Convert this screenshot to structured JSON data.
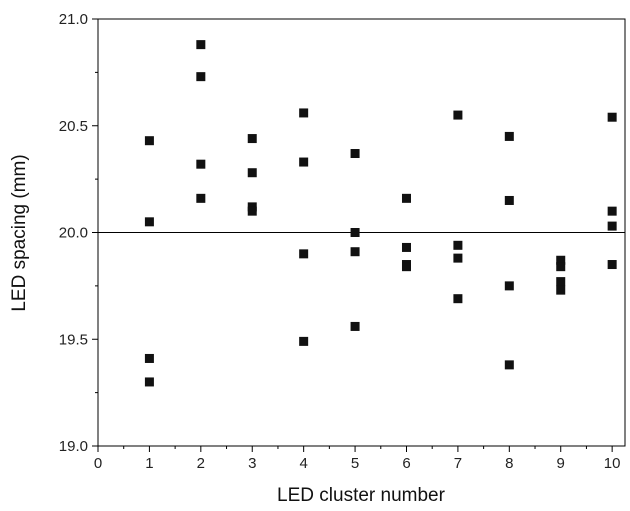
{
  "chart_data": {
    "type": "scatter",
    "title": "",
    "xlabel": "LED cluster number",
    "ylabel": "LED spacing (mm)",
    "xlim": [
      0,
      10.25
    ],
    "ylim": [
      19.0,
      21.0
    ],
    "x_major_ticks": [
      0,
      1,
      2,
      3,
      4,
      5,
      6,
      7,
      8,
      9,
      10
    ],
    "x_tick_labels": [
      "0",
      "1",
      "2",
      "3",
      "4",
      "5",
      "6",
      "7",
      "8",
      "9",
      "10"
    ],
    "y_major_ticks": [
      19.0,
      19.5,
      20.0,
      20.5,
      21.0
    ],
    "y_tick_labels": [
      "19.0",
      "19.5",
      "20.0",
      "20.5",
      "21.0"
    ],
    "reference_line_y": 20.0,
    "marker": "square",
    "marker_color": "#111111",
    "grid": false,
    "series": [
      {
        "points": [
          [
            1,
            20.43
          ],
          [
            1,
            20.05
          ],
          [
            1,
            19.41
          ],
          [
            1,
            19.3
          ],
          [
            2,
            20.88
          ],
          [
            2,
            20.73
          ],
          [
            2,
            20.32
          ],
          [
            2,
            20.16
          ],
          [
            3,
            20.44
          ],
          [
            3,
            20.28
          ],
          [
            3,
            20.12
          ],
          [
            3,
            20.1
          ],
          [
            4,
            20.56
          ],
          [
            4,
            20.33
          ],
          [
            4,
            19.9
          ],
          [
            4,
            19.49
          ],
          [
            5,
            20.37
          ],
          [
            5,
            20.0
          ],
          [
            5,
            19.91
          ],
          [
            5,
            19.56
          ],
          [
            6,
            20.16
          ],
          [
            6,
            19.93
          ],
          [
            6,
            19.85
          ],
          [
            6,
            19.84
          ],
          [
            7,
            20.55
          ],
          [
            7,
            19.94
          ],
          [
            7,
            19.88
          ],
          [
            7,
            19.69
          ],
          [
            8,
            20.45
          ],
          [
            8,
            20.15
          ],
          [
            8,
            19.75
          ],
          [
            8,
            19.38
          ],
          [
            9,
            19.87
          ],
          [
            9,
            19.84
          ],
          [
            9,
            19.77
          ],
          [
            9,
            19.73
          ],
          [
            10,
            20.54
          ],
          [
            10,
            20.1
          ],
          [
            10,
            20.03
          ],
          [
            10,
            19.85
          ]
        ]
      }
    ]
  }
}
